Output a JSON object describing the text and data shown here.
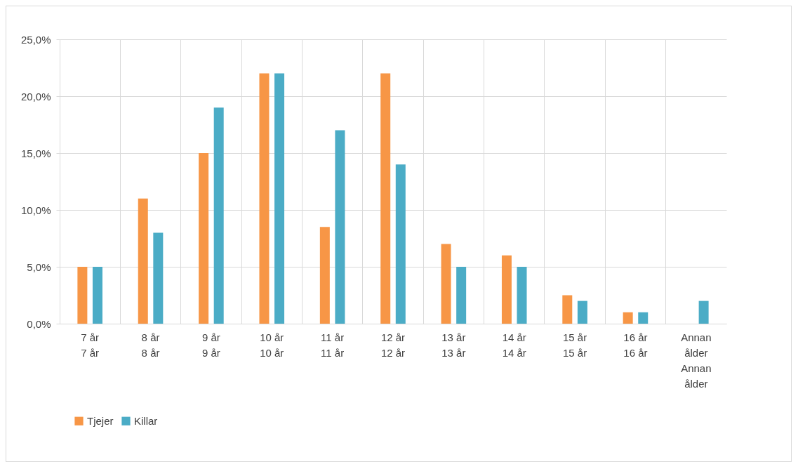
{
  "chart_data": {
    "type": "bar",
    "categories": [
      "7 år\n7 år",
      "8 år\n8 år",
      "9 år\n9 år",
      "10 år\n10 år",
      "11 år\n11 år",
      "12 år\n12 år",
      "13 år\n13 år",
      "14 år\n14 år",
      "15 år\n15 år",
      "16 år\n16 år",
      "Annan ålder\nAnnan ålder"
    ],
    "series": [
      {
        "name": "Tjejer",
        "color": "#f79646",
        "values": [
          5,
          11,
          15,
          22,
          8.5,
          22,
          7,
          6,
          2.5,
          1,
          0
        ]
      },
      {
        "name": "Killar",
        "color": "#4bacc6",
        "values": [
          5,
          8,
          19,
          22,
          17,
          14,
          5,
          5,
          2,
          1,
          2
        ]
      }
    ],
    "ylim": [
      0,
      25
    ],
    "yticks": [
      {
        "value": 0,
        "label": "0,0%"
      },
      {
        "value": 5,
        "label": "5,0%"
      },
      {
        "value": 10,
        "label": "10,0%"
      },
      {
        "value": 15,
        "label": "15,0%"
      },
      {
        "value": 20,
        "label": "20,0%"
      },
      {
        "value": 25,
        "label": "25,0%"
      }
    ],
    "grid": true,
    "legend": "bottom"
  }
}
